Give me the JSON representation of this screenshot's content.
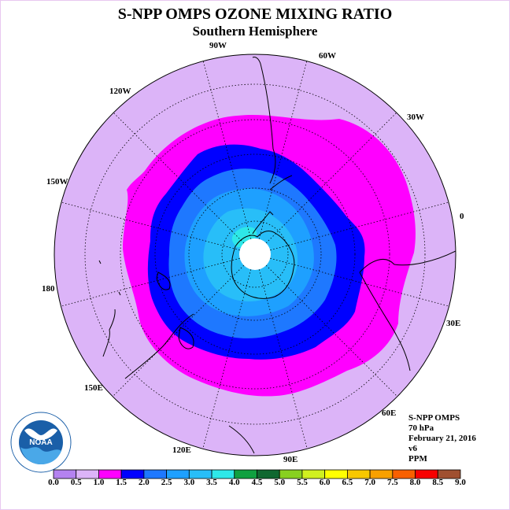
{
  "header": {
    "title": "S-NPP OMPS OZONE MIXING RATIO",
    "subtitle": "Southern Hemisphere"
  },
  "map": {
    "projection": "polar stereographic",
    "hemisphere": "south",
    "longitude_labels": [
      "90W",
      "60W",
      "30W",
      "0",
      "30E",
      "60E",
      "90E",
      "120E",
      "150E",
      "180",
      "150W",
      "120W"
    ],
    "colors": {
      "background_ring": "#dcb4f8",
      "magenta": "#ff00ff",
      "blue": "#0000ff",
      "mid_blue": "#1e78ff",
      "light_blue": "#1ea0ff",
      "sky_blue": "#28bef8",
      "cyan": "#2ee8e8",
      "pole": "#ffffff"
    }
  },
  "info": {
    "instrument": "S-NPP OMPS",
    "level": "70 hPa",
    "date": "February 21, 2016",
    "version": "v6",
    "units": "PPM"
  },
  "colorbar": {
    "labels": [
      "0.0",
      "0.5",
      "1.0",
      "1.5",
      "2.0",
      "2.5",
      "3.0",
      "3.5",
      "4.0",
      "4.5",
      "5.0",
      "5.5",
      "6.0",
      "6.5",
      "7.0",
      "7.5",
      "8.0",
      "8.5",
      "9.0"
    ],
    "colors": [
      "#b482f0",
      "#dcb4f8",
      "#ff00ff",
      "#0000ff",
      "#1e78ff",
      "#1ea0ff",
      "#28bef8",
      "#2ee8e8",
      "#10a040",
      "#106830",
      "#88d020",
      "#d0f020",
      "#ffff00",
      "#f8c800",
      "#f8a000",
      "#f86000",
      "#f80000",
      "#a05030"
    ]
  },
  "logo": {
    "text": "NOAA"
  }
}
